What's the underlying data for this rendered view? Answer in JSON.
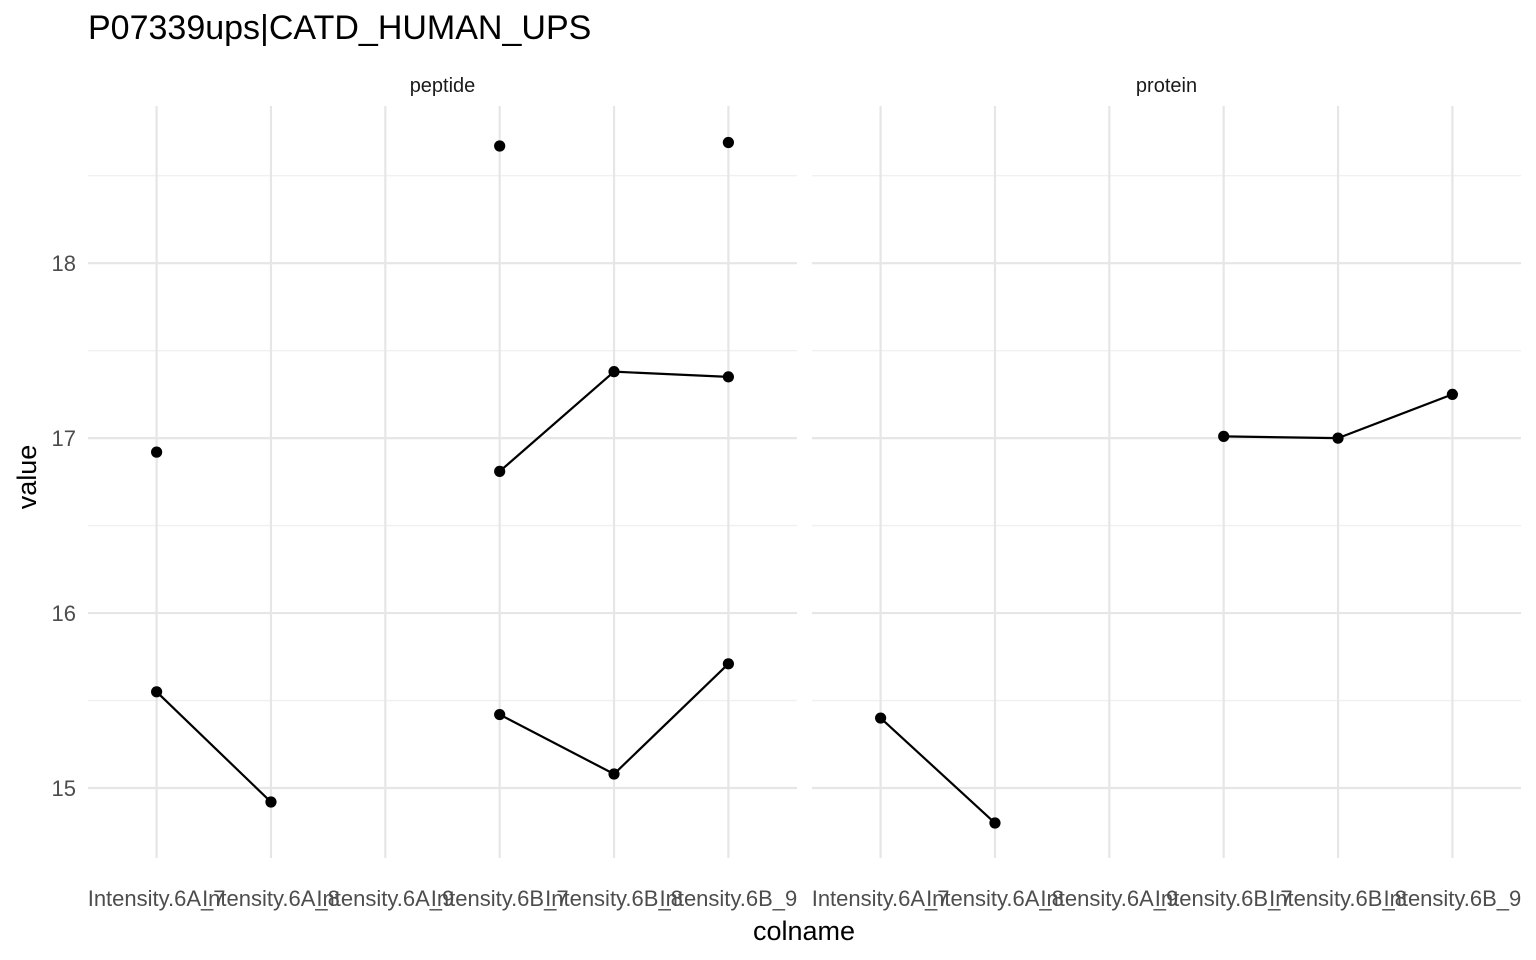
{
  "chart_data": {
    "type": "scatter",
    "title": "P07339ups|CATD_HUMAN_UPS",
    "xlabel": "colname",
    "ylabel": "value",
    "categories": [
      "Intensity.6A_7",
      "Intensity.6A_8",
      "Intensity.6A_9",
      "Intensity.6B_7",
      "Intensity.6B_8",
      "Intensity.6B_9"
    ],
    "yticks": [
      15,
      16,
      17,
      18
    ],
    "ylim": [
      14.6,
      18.95
    ],
    "grid": true,
    "panels": [
      {
        "label": "peptide",
        "series": [
          {
            "values": [
              16.92,
              null,
              null,
              18.67,
              null,
              18.69
            ],
            "lines": false
          },
          {
            "values": [
              15.55,
              14.92,
              null,
              16.81,
              17.38,
              17.35
            ],
            "lines": true
          },
          {
            "values": [
              null,
              null,
              null,
              15.42,
              15.08,
              15.71
            ],
            "lines": true
          }
        ]
      },
      {
        "label": "protein",
        "series": [
          {
            "values": [
              15.4,
              14.8,
              null,
              17.01,
              17.0,
              17.25
            ],
            "lines": true
          }
        ]
      }
    ]
  }
}
